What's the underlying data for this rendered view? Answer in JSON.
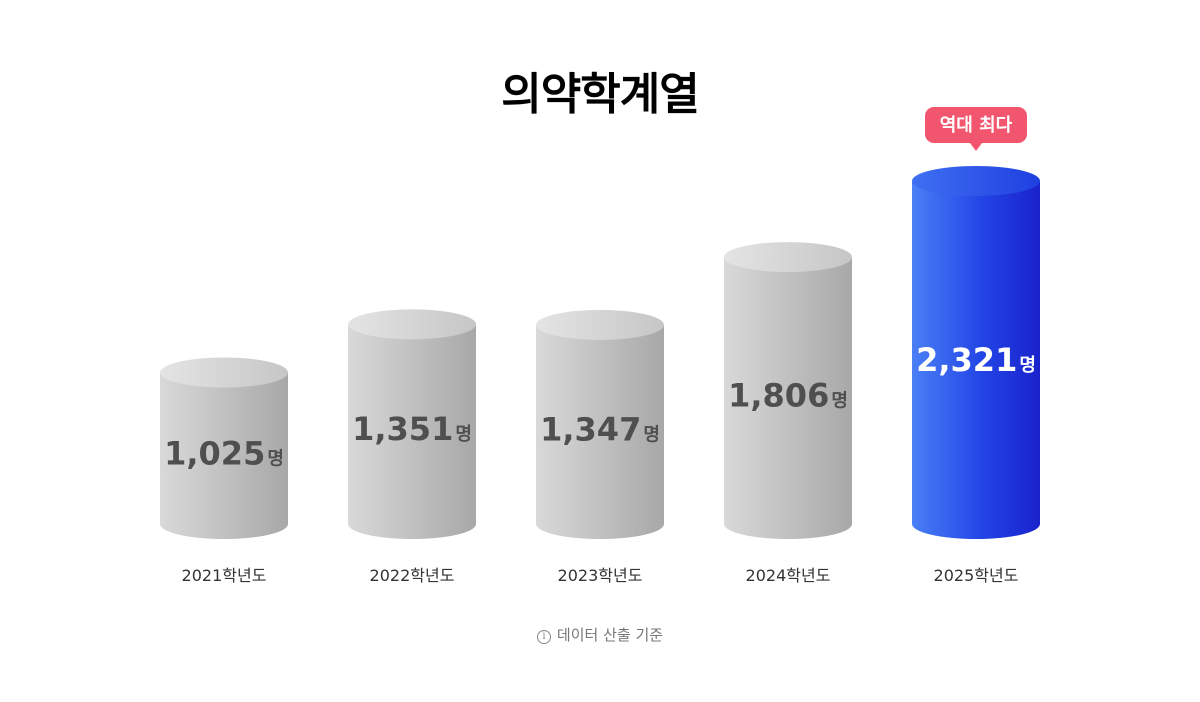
{
  "chart_data": {
    "type": "bar",
    "title": "의약학계열",
    "categories": [
      "2021학년도",
      "2022학년도",
      "2023학년도",
      "2024학년도",
      "2025학년도"
    ],
    "values": [
      1025,
      1351,
      1347,
      1806,
      2321
    ],
    "value_labels": [
      "1,025",
      "1,351",
      "1,347",
      "1,806",
      "2,321"
    ],
    "unit": "명",
    "highlight": {
      "index": 4,
      "badge": "역대 최다",
      "color": "#1f4ef0",
      "badge_color": "#f2566e"
    },
    "base_color": "#c9c9c9"
  },
  "footnote": {
    "icon": "info-icon",
    "text": "데이터 산출 기준"
  }
}
